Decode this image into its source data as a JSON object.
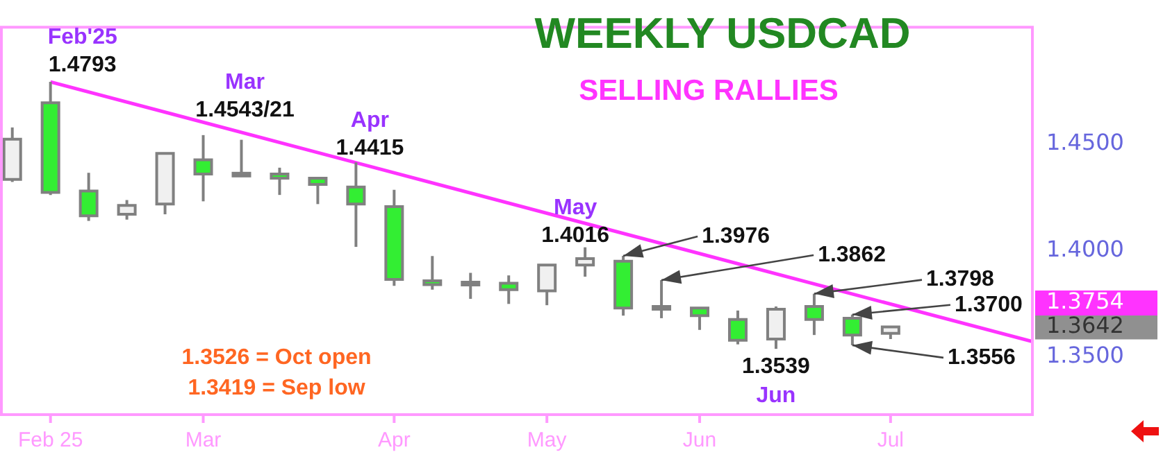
{
  "chart_data": {
    "type": "candlestick",
    "title": "WEEKLY USDCAD",
    "subtitle": "SELLING RALLIES",
    "x": [
      "2025-01-26",
      "2025-02-02",
      "2025-02-09",
      "2025-02-16",
      "2025-02-23",
      "2025-03-02",
      "2025-03-09",
      "2025-03-16",
      "2025-03-23",
      "2025-03-30",
      "2025-04-06",
      "2025-04-13",
      "2025-04-20",
      "2025-04-27",
      "2025-05-04",
      "2025-05-11",
      "2025-05-18",
      "2025-05-25",
      "2025-06-01",
      "2025-06-08",
      "2025-06-15",
      "2025-06-22",
      "2025-06-29",
      "2025-07-06"
    ],
    "ohlc": [
      [
        1.4335,
        1.4579,
        1.4323,
        1.4524
      ],
      [
        1.4695,
        1.4793,
        1.4262,
        1.4274
      ],
      [
        1.428,
        1.4366,
        1.414,
        1.4164
      ],
      [
        1.4171,
        1.4238,
        1.4146,
        1.4213
      ],
      [
        1.4219,
        1.446,
        1.4171,
        1.4457
      ],
      [
        1.4427,
        1.4543,
        1.4232,
        1.436
      ],
      [
        1.4364,
        1.4521,
        1.4347,
        1.4351
      ],
      [
        1.436,
        1.439,
        1.4262,
        1.4341
      ],
      [
        1.4341,
        1.4343,
        1.4219,
        1.4311
      ],
      [
        1.4299,
        1.4415,
        1.4018,
        1.4219
      ],
      [
        1.4207,
        1.4286,
        1.3835,
        1.3865
      ],
      [
        1.3859,
        1.3975,
        1.3817,
        1.3841
      ],
      [
        1.3839,
        1.3896,
        1.3774,
        1.3852
      ],
      [
        1.3847,
        1.3884,
        1.375,
        1.3817
      ],
      [
        1.3811,
        1.3933,
        1.3744,
        1.3933
      ],
      [
        1.3933,
        1.4016,
        1.3878,
        1.3963
      ],
      [
        1.3951,
        1.3976,
        1.3695,
        1.3731
      ],
      [
        1.3725,
        1.3862,
        1.3683,
        1.3738
      ],
      [
        1.3731,
        1.3733,
        1.3628,
        1.3695
      ],
      [
        1.3677,
        1.3719,
        1.356,
        1.3579
      ],
      [
        1.3585,
        1.3738,
        1.3539,
        1.3725
      ],
      [
        1.3738,
        1.3798,
        1.3604,
        1.3677
      ],
      [
        1.3683,
        1.37,
        1.3556,
        1.3604
      ],
      [
        1.3612,
        1.3645,
        1.3585,
        1.3642
      ]
    ],
    "color": "#808080",
    "colors": [
      "#f0f0f0",
      "#33ee33",
      "#33ee33",
      "#f0f0f0",
      "#f0f0f0",
      "#33ee33",
      "#33ee33",
      "#33ee33",
      "#33ee33",
      "#33ee33",
      "#33ee33",
      "#33ee33",
      "#f0f0f0",
      "#33ee33",
      "#f0f0f0",
      "#f0f0f0",
      "#33ee33",
      "#f0f0f0",
      "#33ee33",
      "#33ee33",
      "#f0f0f0",
      "#33ee33",
      "#33ee33",
      "#f0f0f0"
    ],
    "series": [
      {
        "type": "line",
        "color": "#ff33ff",
        "x": [
          "2025-02-02",
          "2025-08-01"
        ],
        "values": [
          1.4793,
          1.3573
        ]
      }
    ],
    "xlim": [
      "2025-01-24",
      "2025-08-01"
    ],
    "xticks": [
      {
        "value": "2025-02-02",
        "label": "Feb 25"
      },
      {
        "value": "2025-03-02",
        "label": "Mar"
      },
      {
        "value": "2025-04-06",
        "label": "Apr"
      },
      {
        "value": "2025-05-04",
        "label": "May"
      },
      {
        "value": "2025-06-01",
        "label": "Jun"
      },
      {
        "value": "2025-07-06",
        "label": "Jul"
      }
    ],
    "ylim": [
      1.323,
      1.505
    ],
    "yticks": [
      {
        "value": 1.35,
        "label": "1.3500"
      },
      {
        "value": 1.3642,
        "label": "1.3642"
      },
      {
        "value": 1.3754,
        "label": "1.3754"
      },
      {
        "value": 1.4,
        "label": "1.4000"
      },
      {
        "value": 1.45,
        "label": "1.4500"
      }
    ],
    "annotations": [
      {
        "text": "Feb'25\n1.4793",
        "x": "2025-02-02",
        "y": 1.4793
      },
      {
        "text": "Mar\n1.4543/21",
        "x": "2025-03-02",
        "y": 1.4543
      },
      {
        "text": "Apr\n1.4415",
        "x": "2025-03-30",
        "y": 1.4415
      },
      {
        "text": "May\n1.4016",
        "x": "2025-05-11",
        "y": 1.4016
      },
      {
        "text": "1.3976",
        "x": "2025-05-18",
        "y": 1.3976
      },
      {
        "text": "1.3862",
        "x": "2025-05-25",
        "y": 1.3862
      },
      {
        "text": "1.3539\nJun",
        "x": "2025-06-15",
        "y": 1.3539
      },
      {
        "text": "1.3798",
        "x": "2025-06-22",
        "y": 1.3798
      },
      {
        "text": "1.3700",
        "x": "2025-06-29",
        "y": 1.37
      },
      {
        "text": "1.3556",
        "x": "2025-06-29",
        "y": 1.3556
      },
      "1.3526 = Oct open",
      "1.3419 = Sep low"
    ]
  }
}
